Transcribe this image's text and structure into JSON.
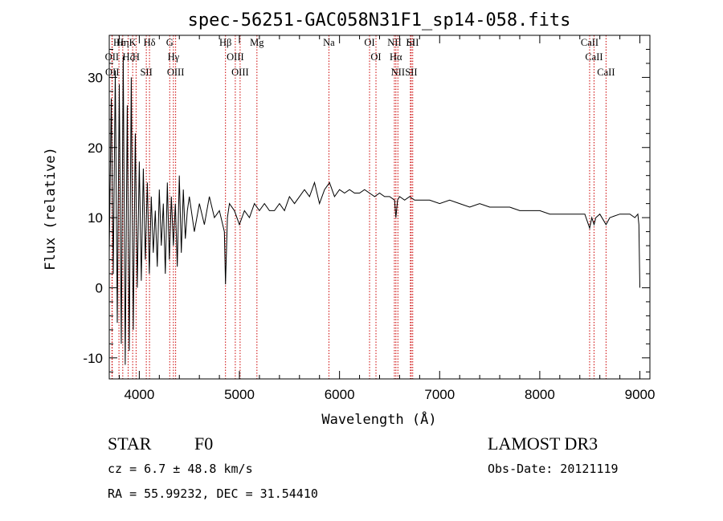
{
  "chart_data": {
    "type": "line",
    "title": "spec-56251-GAC058N31F1_sp14-058.fits",
    "xlabel": "Wavelength (Å)",
    "ylabel": "Flux (relative)",
    "xlim": [
      3700,
      9100
    ],
    "ylim": [
      -13,
      36
    ],
    "xticks": [
      4000,
      5000,
      6000,
      7000,
      8000,
      9000
    ],
    "yticks": [
      -10,
      0,
      10,
      20,
      30
    ],
    "series": [
      {
        "name": "flux",
        "x": [
          3700,
          3720,
          3740,
          3760,
          3780,
          3800,
          3820,
          3840,
          3860,
          3880,
          3900,
          3920,
          3940,
          3960,
          3980,
          4000,
          4020,
          4040,
          4060,
          4080,
          4100,
          4120,
          4140,
          4160,
          4180,
          4200,
          4220,
          4240,
          4260,
          4280,
          4300,
          4320,
          4340,
          4360,
          4380,
          4400,
          4420,
          4440,
          4460,
          4480,
          4500,
          4550,
          4600,
          4650,
          4700,
          4750,
          4800,
          4850,
          4861,
          4880,
          4900,
          4950,
          5000,
          5050,
          5100,
          5150,
          5200,
          5250,
          5300,
          5350,
          5400,
          5450,
          5500,
          5550,
          5600,
          5650,
          5700,
          5750,
          5800,
          5850,
          5900,
          5950,
          6000,
          6050,
          6100,
          6150,
          6200,
          6250,
          6300,
          6350,
          6400,
          6450,
          6500,
          6550,
          6563,
          6580,
          6600,
          6650,
          6700,
          6750,
          6800,
          6900,
          7000,
          7100,
          7200,
          7300,
          7400,
          7500,
          7600,
          7700,
          7800,
          7900,
          8000,
          8100,
          8200,
          8300,
          8400,
          8450,
          8498,
          8520,
          8542,
          8560,
          8600,
          8662,
          8700,
          8800,
          8900,
          8950,
          8980,
          8990,
          9000
        ],
        "values": [
          5,
          27,
          2,
          31,
          -5,
          29,
          -8,
          33,
          -11,
          26,
          -9,
          30,
          -6,
          22,
          0,
          18,
          1,
          17,
          4,
          15,
          2,
          13,
          5,
          11,
          3,
          14,
          6,
          12,
          2,
          15,
          4,
          13,
          6,
          12,
          3,
          16,
          5,
          14,
          7,
          11,
          13,
          8,
          12,
          9,
          13,
          10,
          11,
          8,
          0.5,
          10,
          12,
          11,
          9,
          11,
          10,
          12,
          11,
          12,
          11,
          11,
          12,
          11,
          13,
          12,
          13,
          14,
          13,
          15,
          12,
          14,
          15,
          13,
          14,
          13.5,
          14,
          13.5,
          13.5,
          14,
          13.5,
          13,
          13.5,
          13,
          13,
          12.5,
          10,
          12.5,
          13,
          12.5,
          13,
          12.5,
          12.5,
          12.5,
          12,
          12.5,
          12,
          11.5,
          12,
          11.5,
          11.5,
          11.5,
          11,
          11,
          11,
          10.5,
          10.5,
          10.5,
          10.5,
          10.5,
          8.5,
          10,
          9,
          10,
          10.5,
          9,
          10,
          10.5,
          10.5,
          10,
          10.5,
          9,
          0
        ]
      }
    ],
    "lines": [
      {
        "label": "Hε",
        "x": 3797
      },
      {
        "label": "OII",
        "x": 3727
      },
      {
        "label": "OII",
        "x": 3730
      },
      {
        "label": "Hη",
        "x": 3835
      },
      {
        "label": "Hζ",
        "x": 3889
      },
      {
        "label": "K",
        "x": 3934
      },
      {
        "label": "H",
        "x": 3968
      },
      {
        "label": "SII",
        "x": 4070
      },
      {
        "label": "Hδ",
        "x": 4102
      },
      {
        "label": "G",
        "x": 4304
      },
      {
        "label": "Hγ",
        "x": 4341
      },
      {
        "label": "OIII",
        "x": 4363
      },
      {
        "label": "Hβ",
        "x": 4861
      },
      {
        "label": "OIII",
        "x": 4959
      },
      {
        "label": "OIII",
        "x": 5007
      },
      {
        "label": "Mg",
        "x": 5175
      },
      {
        "label": "Na",
        "x": 5894
      },
      {
        "label": "OI",
        "x": 6300
      },
      {
        "label": "OI",
        "x": 6364
      },
      {
        "label": "NII",
        "x": 6548
      },
      {
        "label": "Hα",
        "x": 6563
      },
      {
        "label": "NII",
        "x": 6583
      },
      {
        "label": "Li",
        "x": 6708
      },
      {
        "label": "SII",
        "x": 6716
      },
      {
        "label": "SII",
        "x": 6731
      },
      {
        "label": "CaII",
        "x": 8498
      },
      {
        "label": "CaII",
        "x": 8542
      },
      {
        "label": "CaII",
        "x": 8662
      }
    ],
    "grid": false,
    "colors": {
      "line": "#000000",
      "marker": "#cc0000"
    }
  },
  "info": {
    "class": "STAR",
    "subclass": "F0",
    "survey": "LAMOST DR3",
    "cz": "cz = 6.7 ± 48.8 km/s",
    "obs_date": "Obs-Date: 20121119",
    "coords": "RA =  55.99232, DEC =  31.54410"
  }
}
